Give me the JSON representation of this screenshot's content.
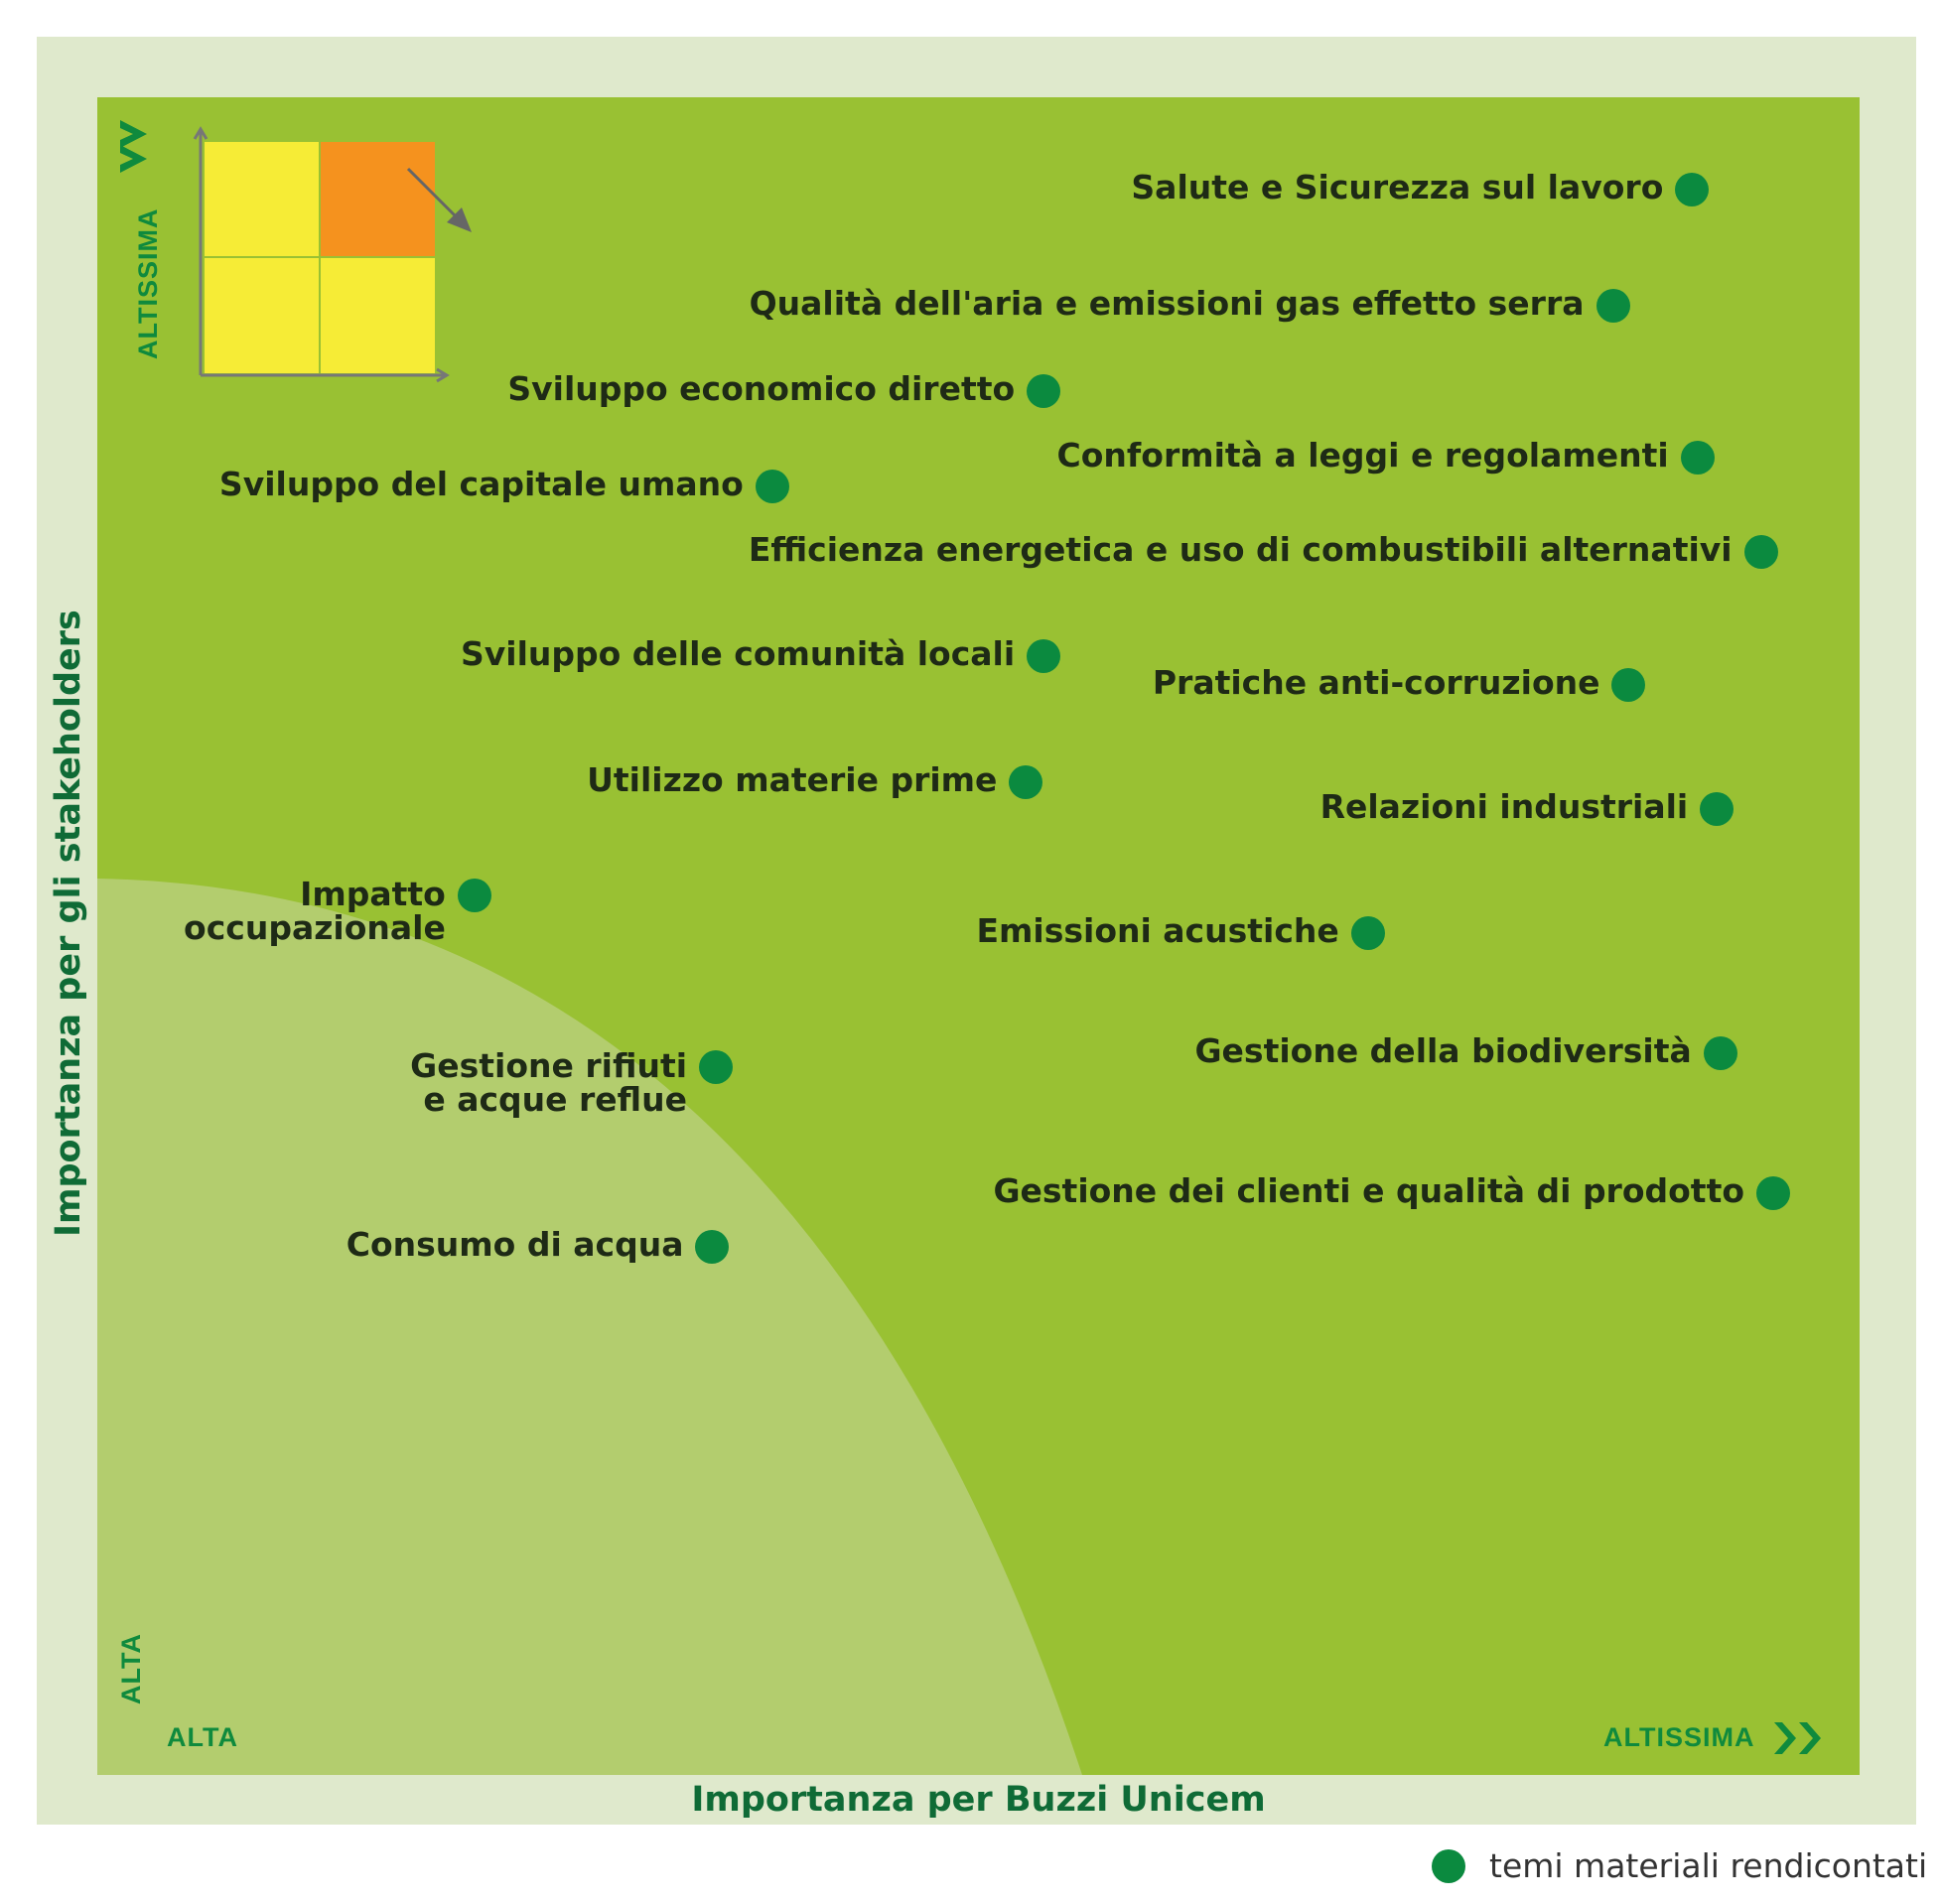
{
  "chart_data": {
    "type": "scatter",
    "title": "",
    "xlabel": "Importanza per Buzzi Unicem",
    "ylabel": "Importanza per gli stakeholders",
    "x_tick_low": "ALTA",
    "x_tick_high": "ALTISSIMA",
    "y_tick_low": "ALTA",
    "y_tick_high": "ALTISSIMA",
    "xlim": [
      0,
      100
    ],
    "ylim": [
      0,
      100
    ],
    "legend": {
      "label": "temi materiali rendicontati",
      "position": "bottom-right"
    },
    "points": [
      {
        "label": "Salute e Sicurezza sul lavoro",
        "x": 90.5,
        "y": 94.5
      },
      {
        "label": "Qualità dell'aria e emissioni gas effetto serra",
        "x": 86,
        "y": 87.6
      },
      {
        "label": "Sviluppo economico diretto",
        "x": 53.7,
        "y": 82.5
      },
      {
        "label": "Conformità a leggi e regolamenti",
        "x": 90.8,
        "y": 78.5
      },
      {
        "label": "Sviluppo del capitale umano",
        "x": 38.3,
        "y": 76.8
      },
      {
        "label": "Efficienza energetica e uso di combustibili alternativi",
        "x": 94.4,
        "y": 72.9
      },
      {
        "label": "Sviluppo delle comunità locali",
        "x": 53.7,
        "y": 66.7
      },
      {
        "label": "Pratiche anti-corruzione",
        "x": 86.9,
        "y": 65
      },
      {
        "label": "Utilizzo materie prime",
        "x": 52.7,
        "y": 59.2
      },
      {
        "label": "Relazioni industriali",
        "x": 91.9,
        "y": 57.6
      },
      {
        "label": "Impatto|occupazionale",
        "x": 21.4,
        "y": 52.4
      },
      {
        "label": "Emissioni acustiche",
        "x": 72.1,
        "y": 50.2
      },
      {
        "label": "Gestione della biodiversità",
        "x": 92.1,
        "y": 43
      },
      {
        "label": "Gestione rifiuti|e acque reflue",
        "x": 35.1,
        "y": 42.2
      },
      {
        "label": "Gestione dei clienti e qualità di prodotto",
        "x": 95.1,
        "y": 34.7
      },
      {
        "label": "Consumo di acqua",
        "x": 34.9,
        "y": 31.5
      }
    ]
  },
  "colors": {
    "plot_bg": "#99c133",
    "low_zone": "#b3cd6e",
    "frame": "#dfe9cc",
    "dot": "#0b8a3f",
    "axis_text": "#0f8a3d",
    "quad_yellow": "#f6ec36",
    "quad_orange": "#f5921e"
  }
}
